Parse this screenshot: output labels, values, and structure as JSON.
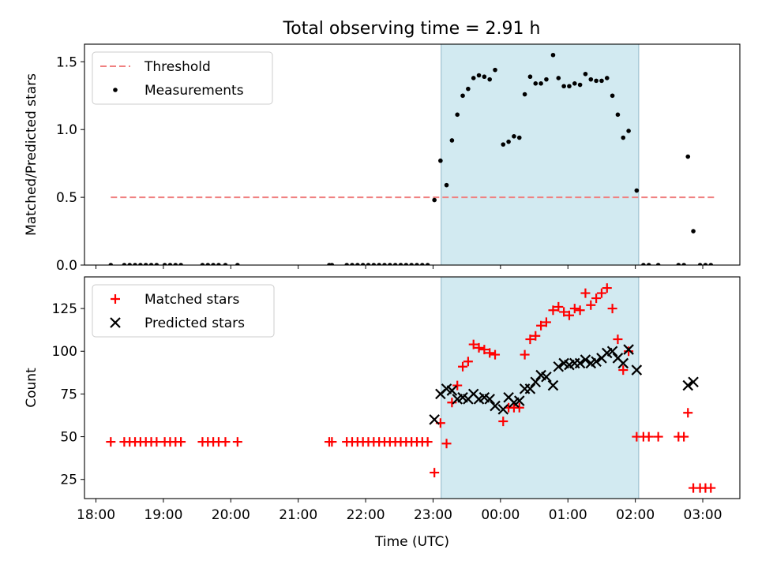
{
  "title": "Total observing time = 2.91 h",
  "colors": {
    "threshold": "#f08080",
    "measurement": "#000000",
    "matched": "#ff0000",
    "predicted": "#000000",
    "shade": "#add8e6"
  },
  "chart_data": [
    {
      "type": "scatter",
      "ylabel": "Matched/Predicted stars",
      "xlim": [
        17.83,
        27.55
      ],
      "ylim": [
        0.0,
        1.63
      ],
      "y_ticks": [
        {
          "label": "0.0",
          "value": 0.0
        },
        {
          "label": "0.5",
          "value": 0.5
        },
        {
          "label": "1.0",
          "value": 1.0
        },
        {
          "label": "1.5",
          "value": 1.5
        }
      ],
      "shaded_span": [
        23.12,
        26.05
      ],
      "threshold": {
        "name": "Threshold",
        "y": 0.5,
        "x_range": [
          18.22,
          27.17
        ],
        "style": "dashed"
      },
      "legend": {
        "entries": [
          "Threshold",
          "Measurements"
        ],
        "position": "upper left"
      },
      "series": [
        {
          "name": "Measurements",
          "points": [
            [
              18.22,
              0.0
            ],
            [
              18.42,
              0.0
            ],
            [
              18.5,
              0.0
            ],
            [
              18.58,
              0.0
            ],
            [
              18.66,
              0.0
            ],
            [
              18.74,
              0.0
            ],
            [
              18.82,
              0.0
            ],
            [
              18.9,
              0.0
            ],
            [
              19.02,
              0.0
            ],
            [
              19.1,
              0.0
            ],
            [
              19.18,
              0.0
            ],
            [
              19.26,
              0.0
            ],
            [
              19.58,
              0.0
            ],
            [
              19.66,
              0.0
            ],
            [
              19.74,
              0.0
            ],
            [
              19.82,
              0.0
            ],
            [
              19.92,
              0.0
            ],
            [
              20.1,
              0.0
            ],
            [
              21.46,
              0.0
            ],
            [
              21.5,
              0.0
            ],
            [
              21.72,
              0.0
            ],
            [
              21.8,
              0.0
            ],
            [
              21.88,
              0.0
            ],
            [
              21.96,
              0.0
            ],
            [
              22.04,
              0.0
            ],
            [
              22.12,
              0.0
            ],
            [
              22.2,
              0.0
            ],
            [
              22.28,
              0.0
            ],
            [
              22.36,
              0.0
            ],
            [
              22.44,
              0.0
            ],
            [
              22.52,
              0.0
            ],
            [
              22.6,
              0.0
            ],
            [
              22.68,
              0.0
            ],
            [
              22.76,
              0.0
            ],
            [
              22.84,
              0.0
            ],
            [
              22.92,
              0.0
            ],
            [
              23.02,
              0.48
            ],
            [
              23.11,
              0.77
            ],
            [
              23.2,
              0.59
            ],
            [
              23.28,
              0.92
            ],
            [
              23.36,
              1.11
            ],
            [
              23.44,
              1.25
            ],
            [
              23.52,
              1.3
            ],
            [
              23.6,
              1.38
            ],
            [
              23.68,
              1.4
            ],
            [
              23.76,
              1.39
            ],
            [
              23.84,
              1.37
            ],
            [
              23.92,
              1.44
            ],
            [
              24.04,
              0.89
            ],
            [
              24.12,
              0.91
            ],
            [
              24.2,
              0.95
            ],
            [
              24.28,
              0.94
            ],
            [
              24.36,
              1.26
            ],
            [
              24.44,
              1.39
            ],
            [
              24.52,
              1.34
            ],
            [
              24.6,
              1.34
            ],
            [
              24.68,
              1.37
            ],
            [
              24.78,
              1.55
            ],
            [
              24.86,
              1.38
            ],
            [
              24.94,
              1.32
            ],
            [
              25.02,
              1.32
            ],
            [
              25.1,
              1.34
            ],
            [
              25.18,
              1.33
            ],
            [
              25.26,
              1.41
            ],
            [
              25.34,
              1.37
            ],
            [
              25.42,
              1.36
            ],
            [
              25.5,
              1.36
            ],
            [
              25.58,
              1.38
            ],
            [
              25.66,
              1.25
            ],
            [
              25.74,
              1.11
            ],
            [
              25.82,
              0.94
            ],
            [
              25.9,
              0.99
            ],
            [
              26.02,
              0.55
            ],
            [
              26.12,
              0.0
            ],
            [
              26.2,
              0.0
            ],
            [
              26.34,
              0.0
            ],
            [
              26.64,
              0.0
            ],
            [
              26.72,
              0.0
            ],
            [
              26.78,
              0.8
            ],
            [
              26.86,
              0.25
            ],
            [
              26.96,
              0.0
            ],
            [
              27.04,
              0.0
            ],
            [
              27.12,
              0.0
            ]
          ]
        }
      ]
    },
    {
      "type": "scatter",
      "ylabel": "Count",
      "xlabel": "Time (UTC)",
      "xlim": [
        17.83,
        27.55
      ],
      "ylim": [
        13.8,
        143.5
      ],
      "y_ticks": [
        {
          "label": "25",
          "value": 25
        },
        {
          "label": "50",
          "value": 50
        },
        {
          "label": "75",
          "value": 75
        },
        {
          "label": "100",
          "value": 100
        },
        {
          "label": "125",
          "value": 125
        }
      ],
      "x_ticks": [
        {
          "label": "18:00",
          "value": 18
        },
        {
          "label": "19:00",
          "value": 19
        },
        {
          "label": "20:00",
          "value": 20
        },
        {
          "label": "21:00",
          "value": 21
        },
        {
          "label": "22:00",
          "value": 22
        },
        {
          "label": "23:00",
          "value": 23
        },
        {
          "label": "00:00",
          "value": 24
        },
        {
          "label": "01:00",
          "value": 25
        },
        {
          "label": "02:00",
          "value": 26
        },
        {
          "label": "03:00",
          "value": 27
        }
      ],
      "shaded_span": [
        23.12,
        26.05
      ],
      "legend": {
        "entries": [
          "Matched stars",
          "Predicted stars"
        ],
        "position": "upper left"
      },
      "series": [
        {
          "name": "Matched stars",
          "marker": "plus",
          "points": [
            [
              18.22,
              47
            ],
            [
              18.42,
              47
            ],
            [
              18.5,
              47
            ],
            [
              18.58,
              47
            ],
            [
              18.66,
              47
            ],
            [
              18.74,
              47
            ],
            [
              18.82,
              47
            ],
            [
              18.9,
              47
            ],
            [
              19.02,
              47
            ],
            [
              19.1,
              47
            ],
            [
              19.18,
              47
            ],
            [
              19.26,
              47
            ],
            [
              19.58,
              47
            ],
            [
              19.66,
              47
            ],
            [
              19.74,
              47
            ],
            [
              19.82,
              47
            ],
            [
              19.92,
              47
            ],
            [
              20.1,
              47
            ],
            [
              21.46,
              47
            ],
            [
              21.5,
              47
            ],
            [
              21.72,
              47
            ],
            [
              21.8,
              47
            ],
            [
              21.88,
              47
            ],
            [
              21.96,
              47
            ],
            [
              22.04,
              47
            ],
            [
              22.12,
              47
            ],
            [
              22.2,
              47
            ],
            [
              22.28,
              47
            ],
            [
              22.36,
              47
            ],
            [
              22.44,
              47
            ],
            [
              22.52,
              47
            ],
            [
              22.6,
              47
            ],
            [
              22.68,
              47
            ],
            [
              22.76,
              47
            ],
            [
              22.84,
              47
            ],
            [
              22.92,
              47
            ],
            [
              23.02,
              29
            ],
            [
              23.11,
              58
            ],
            [
              23.2,
              46
            ],
            [
              23.28,
              70
            ],
            [
              23.36,
              80
            ],
            [
              23.44,
              91
            ],
            [
              23.52,
              94
            ],
            [
              23.6,
              104
            ],
            [
              23.68,
              102
            ],
            [
              23.76,
              101
            ],
            [
              23.84,
              99
            ],
            [
              23.92,
              98
            ],
            [
              24.04,
              59
            ],
            [
              24.12,
              67
            ],
            [
              24.2,
              67
            ],
            [
              24.28,
              67
            ],
            [
              24.36,
              98
            ],
            [
              24.44,
              107
            ],
            [
              24.52,
              109
            ],
            [
              24.6,
              115
            ],
            [
              24.68,
              117
            ],
            [
              24.78,
              124
            ],
            [
              24.86,
              126
            ],
            [
              24.94,
              123
            ],
            [
              25.02,
              121
            ],
            [
              25.1,
              125
            ],
            [
              25.18,
              124
            ],
            [
              25.26,
              134
            ],
            [
              25.34,
              127
            ],
            [
              25.42,
              131
            ],
            [
              25.5,
              134
            ],
            [
              25.58,
              137
            ],
            [
              25.66,
              125
            ],
            [
              25.74,
              107
            ],
            [
              25.82,
              89
            ],
            [
              25.9,
              100
            ],
            [
              26.02,
              50
            ],
            [
              26.12,
              50
            ],
            [
              26.2,
              50
            ],
            [
              26.34,
              50
            ],
            [
              26.64,
              50
            ],
            [
              26.72,
              50
            ],
            [
              26.78,
              64
            ],
            [
              26.86,
              20
            ],
            [
              26.96,
              20
            ],
            [
              27.04,
              20
            ],
            [
              27.12,
              20
            ]
          ]
        },
        {
          "name": "Predicted stars",
          "marker": "cross",
          "points": [
            [
              23.02,
              60
            ],
            [
              23.11,
              75
            ],
            [
              23.2,
              78
            ],
            [
              23.28,
              77
            ],
            [
              23.36,
              72
            ],
            [
              23.44,
              73
            ],
            [
              23.52,
              72
            ],
            [
              23.6,
              75
            ],
            [
              23.68,
              72
            ],
            [
              23.76,
              73
            ],
            [
              23.84,
              72
            ],
            [
              23.92,
              68
            ],
            [
              24.04,
              66
            ],
            [
              24.12,
              73
            ],
            [
              24.2,
              70
            ],
            [
              24.28,
              71
            ],
            [
              24.36,
              78
            ],
            [
              24.44,
              78
            ],
            [
              24.52,
              82
            ],
            [
              24.6,
              86
            ],
            [
              24.68,
              85
            ],
            [
              24.78,
              80
            ],
            [
              24.86,
              91
            ],
            [
              24.94,
              93
            ],
            [
              25.02,
              92
            ],
            [
              25.1,
              93
            ],
            [
              25.18,
              93
            ],
            [
              25.26,
              95
            ],
            [
              25.34,
              93
            ],
            [
              25.42,
              94
            ],
            [
              25.5,
              96
            ],
            [
              25.58,
              99
            ],
            [
              25.66,
              100
            ],
            [
              25.74,
              96
            ],
            [
              25.82,
              93
            ],
            [
              25.9,
              101
            ],
            [
              26.02,
              89
            ],
            [
              26.78,
              80
            ],
            [
              26.86,
              82
            ]
          ]
        }
      ]
    }
  ]
}
